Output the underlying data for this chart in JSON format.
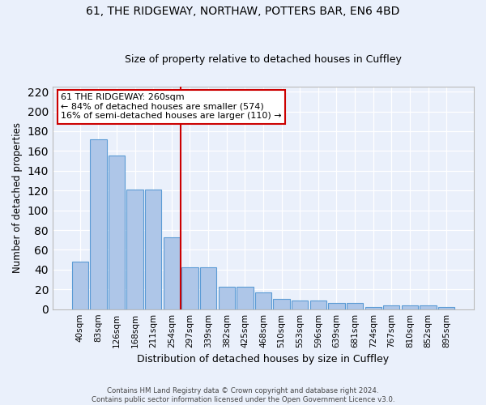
{
  "title": "61, THE RIDGEWAY, NORTHAW, POTTERS BAR, EN6 4BD",
  "subtitle": "Size of property relative to detached houses in Cuffley",
  "xlabel": "Distribution of detached houses by size in Cuffley",
  "ylabel": "Number of detached properties",
  "categories": [
    "40sqm",
    "83sqm",
    "126sqm",
    "168sqm",
    "211sqm",
    "254sqm",
    "297sqm",
    "339sqm",
    "382sqm",
    "425sqm",
    "468sqm",
    "510sqm",
    "553sqm",
    "596sqm",
    "639sqm",
    "681sqm",
    "724sqm",
    "767sqm",
    "810sqm",
    "852sqm",
    "895sqm"
  ],
  "values": [
    48,
    172,
    155,
    121,
    121,
    73,
    42,
    42,
    23,
    23,
    17,
    10,
    9,
    9,
    6,
    6,
    2,
    4,
    4,
    4,
    2
  ],
  "bar_color": "#aec6e8",
  "bar_edge_color": "#5b9bd5",
  "background_color": "#eaf0fb",
  "grid_color": "#ffffff",
  "vline_x": 5.5,
  "vline_color": "#cc0000",
  "annotation_line1": "61 THE RIDGEWAY: 260sqm",
  "annotation_line2": "← 84% of detached houses are smaller (574)",
  "annotation_line3": "16% of semi-detached houses are larger (110) →",
  "annotation_box_color": "#ffffff",
  "annotation_box_edge_color": "#cc0000",
  "footnote": "Contains HM Land Registry data © Crown copyright and database right 2024.\nContains public sector information licensed under the Open Government Licence v3.0.",
  "ylim": [
    0,
    225
  ],
  "yticks": [
    0,
    20,
    40,
    60,
    80,
    100,
    120,
    140,
    160,
    180,
    200,
    220
  ]
}
